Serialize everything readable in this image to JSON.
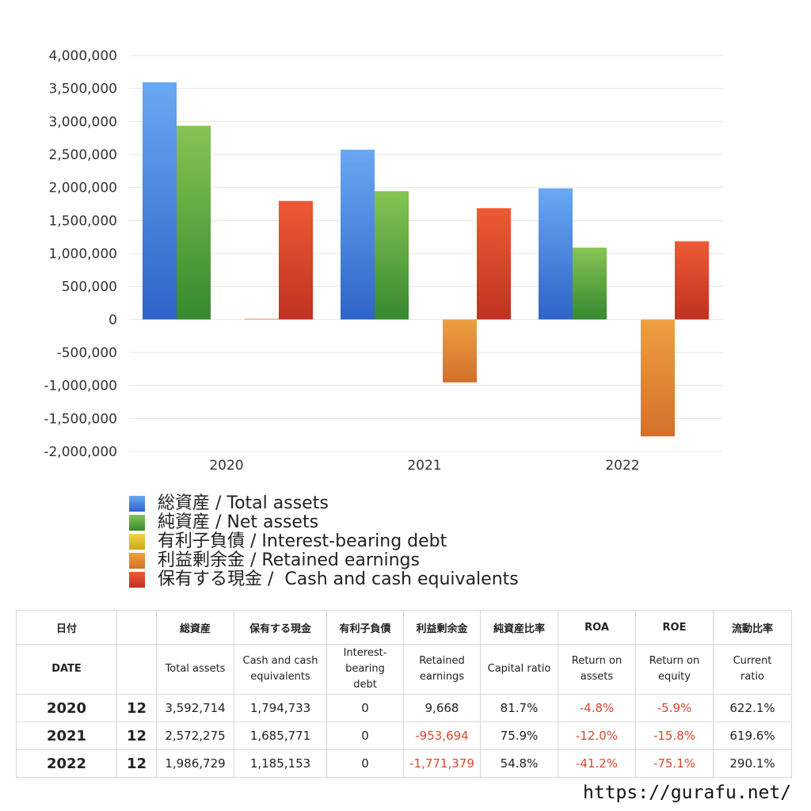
{
  "chart_data": {
    "type": "bar",
    "categories": [
      "2020",
      "2021",
      "2022"
    ],
    "ylim": [
      -2000000,
      4000000
    ],
    "yticks": [
      4000000,
      3500000,
      3000000,
      2500000,
      2000000,
      1500000,
      1000000,
      500000,
      0,
      -500000,
      -1000000,
      -1500000,
      -2000000
    ],
    "ytick_labels": [
      "4,000,000",
      "3,500,000",
      "3,000,000",
      "2,500,000",
      "2,000,000",
      "1,500,000",
      "1,000,000",
      "500,000",
      "0",
      "-500,000",
      "-1,000,000",
      "-1,500,000",
      "-2,000,000"
    ],
    "grid": true,
    "legend_position": "bottom",
    "series": [
      {
        "name": "総資産 / Total assets",
        "color_top": "#6aa8f2",
        "color_bottom": "#2e64c8",
        "values": [
          3592714,
          2572275,
          1986729
        ]
      },
      {
        "name": "純資産 / Net assets",
        "color_top": "#86c454",
        "color_bottom": "#36892f",
        "values": [
          2935000,
          1944000,
          1088000
        ]
      },
      {
        "name": "有利子負債 / Interest-bearing debt",
        "color_top": "#f0d24a",
        "color_bottom": "#c9a81c",
        "values": [
          0,
          0,
          0
        ]
      },
      {
        "name": "利益剰余金 / Retained earnings",
        "color_top": "#eea040",
        "color_bottom": "#d3702a",
        "values": [
          9668,
          -953694,
          -1771379
        ]
      },
      {
        "name": "保有する現金 /  Cash and cash equivalents",
        "color_top": "#ee5a34",
        "color_bottom": "#bf3220",
        "values": [
          1794733,
          1685771,
          1185153
        ]
      }
    ]
  },
  "table": {
    "headers_jp": [
      "日付",
      "",
      "総資産",
      "保有する現金",
      "有利子負債",
      "利益剰余金",
      "純資産比率",
      "ROA",
      "ROE",
      "流動比率"
    ],
    "headers_en": [
      "DATE",
      "",
      "Total assets",
      "Cash and cash\nequivalents",
      "Interest-\nbearing\ndebt",
      "Retained\nearnings",
      "Capital ratio",
      "Return on\nassets",
      "Return on\nequity",
      "Current\nratio"
    ],
    "rows": [
      {
        "year": "2020",
        "month": "12",
        "total_assets": "3,592,714",
        "cash": "1,794,733",
        "debt": "0",
        "retained": "9,668",
        "capital_ratio": "81.7%",
        "roa": "-4.8%",
        "roe": "-5.9%",
        "current_ratio": "622.1%"
      },
      {
        "year": "2021",
        "month": "12",
        "total_assets": "2,572,275",
        "cash": "1,685,771",
        "debt": "0",
        "retained": "-953,694",
        "capital_ratio": "75.9%",
        "roa": "-12.0%",
        "roe": "-15.8%",
        "current_ratio": "619.6%"
      },
      {
        "year": "2022",
        "month": "12",
        "total_assets": "1,986,729",
        "cash": "1,185,153",
        "debt": "0",
        "retained": "-1,771,379",
        "capital_ratio": "54.8%",
        "roa": "-41.2%",
        "roe": "-75.1%",
        "current_ratio": "290.1%"
      }
    ]
  },
  "footer": {
    "url": "https://gurafu.net/"
  }
}
